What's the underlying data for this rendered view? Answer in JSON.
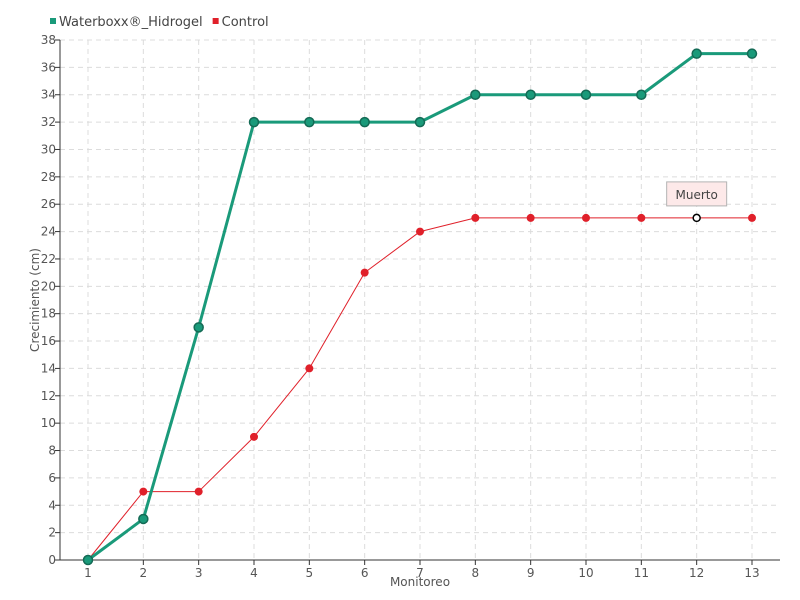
{
  "chart_data": {
    "type": "line",
    "xlabel": "Monitoreo",
    "ylabel": "Crecimiento (cm)",
    "categories": [
      "1",
      "2",
      "3",
      "4",
      "5",
      "6",
      "7",
      "8",
      "9",
      "10",
      "11",
      "12",
      "13"
    ],
    "ylim": [
      0,
      38
    ],
    "ytick_step": 2,
    "grid": true,
    "legend_position": "top-left",
    "series": [
      {
        "name": "Waterboxx®_Hidrogel",
        "color": "#1a9a7a",
        "values": [
          0,
          3,
          17,
          32,
          32,
          32,
          32,
          34,
          34,
          34,
          34,
          37,
          37
        ]
      },
      {
        "name": "Control",
        "color": "#e0202a",
        "values": [
          0,
          5,
          5,
          9,
          14,
          21,
          24,
          25,
          25,
          25,
          25,
          25,
          25
        ]
      }
    ],
    "annotations": [
      {
        "series": "Control",
        "category": "12",
        "text": "Muerto"
      }
    ]
  }
}
